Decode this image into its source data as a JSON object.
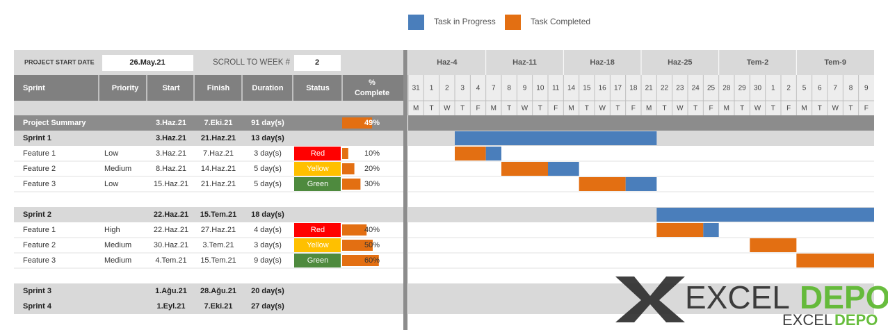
{
  "legend": [
    {
      "label": "Task in Progress",
      "color": "#4A7EBB"
    },
    {
      "label": "Task Completed",
      "color": "#E36F12"
    }
  ],
  "controls": {
    "start_label": "PROJECT START DATE",
    "start_date": "26.May.21",
    "week_label": "SCROLL TO WEEK #",
    "week": 2
  },
  "table": {
    "columns": [
      "Sprint",
      "Priority",
      "Start",
      "Finish",
      "Duration",
      "Status"
    ],
    "pct_header": [
      "%",
      "Complete"
    ]
  },
  "timeline": {
    "weeks": [
      "Haz-4",
      "Haz-11",
      "Haz-18",
      "Haz-25",
      "Tem-2",
      "Tem-9"
    ],
    "days": [
      31,
      1,
      2,
      3,
      4,
      7,
      8,
      9,
      10,
      11,
      14,
      15,
      16,
      17,
      18,
      21,
      22,
      23,
      24,
      25,
      28,
      29,
      30,
      1,
      2,
      5,
      6,
      7,
      8,
      9
    ],
    "weekdays": [
      "M",
      "T",
      "W",
      "T",
      "F",
      "M",
      "T",
      "W",
      "T",
      "F",
      "M",
      "T",
      "W",
      "T",
      "F",
      "M",
      "T",
      "W",
      "T",
      "F",
      "M",
      "T",
      "W",
      "T",
      "F",
      "M",
      "T",
      "W",
      "T",
      "F"
    ]
  },
  "project_summary": {
    "name": "Project Summary",
    "start": "3.Haz.21",
    "finish": "7.Eki.21",
    "duration": "91 day(s)",
    "complete": 49,
    "complete_label": "49%"
  },
  "sprints": [
    {
      "name": "Sprint 1",
      "start": "3.Haz.21",
      "finish": "21.Haz.21",
      "duration": "13 day(s)",
      "gantt": {
        "start": 3,
        "in_progress": 13
      },
      "features": [
        {
          "name": "Feature 1",
          "priority": "Low",
          "start": "3.Haz.21",
          "finish": "7.Haz.21",
          "duration": "3 day(s)",
          "status": "Red",
          "status_color": "#FF0000",
          "complete": 10,
          "complete_label": "10%",
          "gantt": {
            "start": 3,
            "completed": 2,
            "in_progress": 1
          }
        },
        {
          "name": "Feature 2",
          "priority": "Medium",
          "start": "8.Haz.21",
          "finish": "14.Haz.21",
          "duration": "5 day(s)",
          "status": "Yellow",
          "status_color": "#FFC000",
          "complete": 20,
          "complete_label": "20%",
          "gantt": {
            "start": 6,
            "completed": 3,
            "in_progress": 2
          }
        },
        {
          "name": "Feature 3",
          "priority": "Low",
          "start": "15.Haz.21",
          "finish": "21.Haz.21",
          "duration": "5 day(s)",
          "status": "Green",
          "status_color": "#4E8A3E",
          "complete": 30,
          "complete_label": "30%",
          "gantt": {
            "start": 11,
            "completed": 3,
            "in_progress": 2
          }
        }
      ]
    },
    {
      "name": "Sprint 2",
      "start": "22.Haz.21",
      "finish": "15.Tem.21",
      "duration": "18 day(s)",
      "gantt": {
        "start": 16,
        "in_progress": 14
      },
      "features": [
        {
          "name": "Feature 1",
          "priority": "High",
          "start": "22.Haz.21",
          "finish": "27.Haz.21",
          "duration": "4 day(s)",
          "status": "Red",
          "status_color": "#FF0000",
          "complete": 40,
          "complete_label": "40%",
          "gantt": {
            "start": 16,
            "completed": 3,
            "in_progress": 1
          }
        },
        {
          "name": "Feature 2",
          "priority": "Medium",
          "start": "30.Haz.21",
          "finish": "3.Tem.21",
          "duration": "3 day(s)",
          "status": "Yellow",
          "status_color": "#FFC000",
          "complete": 50,
          "complete_label": "50%",
          "gantt": {
            "start": 22,
            "completed": 3,
            "in_progress": 0
          }
        },
        {
          "name": "Feature 3",
          "priority": "Medium",
          "start": "4.Tem.21",
          "finish": "15.Tem.21",
          "duration": "9 day(s)",
          "status": "Green",
          "status_color": "#4E8A3E",
          "complete": 60,
          "complete_label": "60%",
          "gantt": {
            "start": 25,
            "completed": 5,
            "in_progress": 0
          }
        }
      ]
    },
    {
      "name": "Sprint 3",
      "start": "1.Ağu.21",
      "finish": "28.Ağu.21",
      "duration": "20 day(s)",
      "features": []
    },
    {
      "name": "Sprint 4",
      "start": "1.Eyl.21",
      "finish": "7.Eki.21",
      "duration": "27 day(s)",
      "features": []
    }
  ],
  "watermark": {
    "part1": "EXCEL",
    "part2": "DEPO"
  }
}
